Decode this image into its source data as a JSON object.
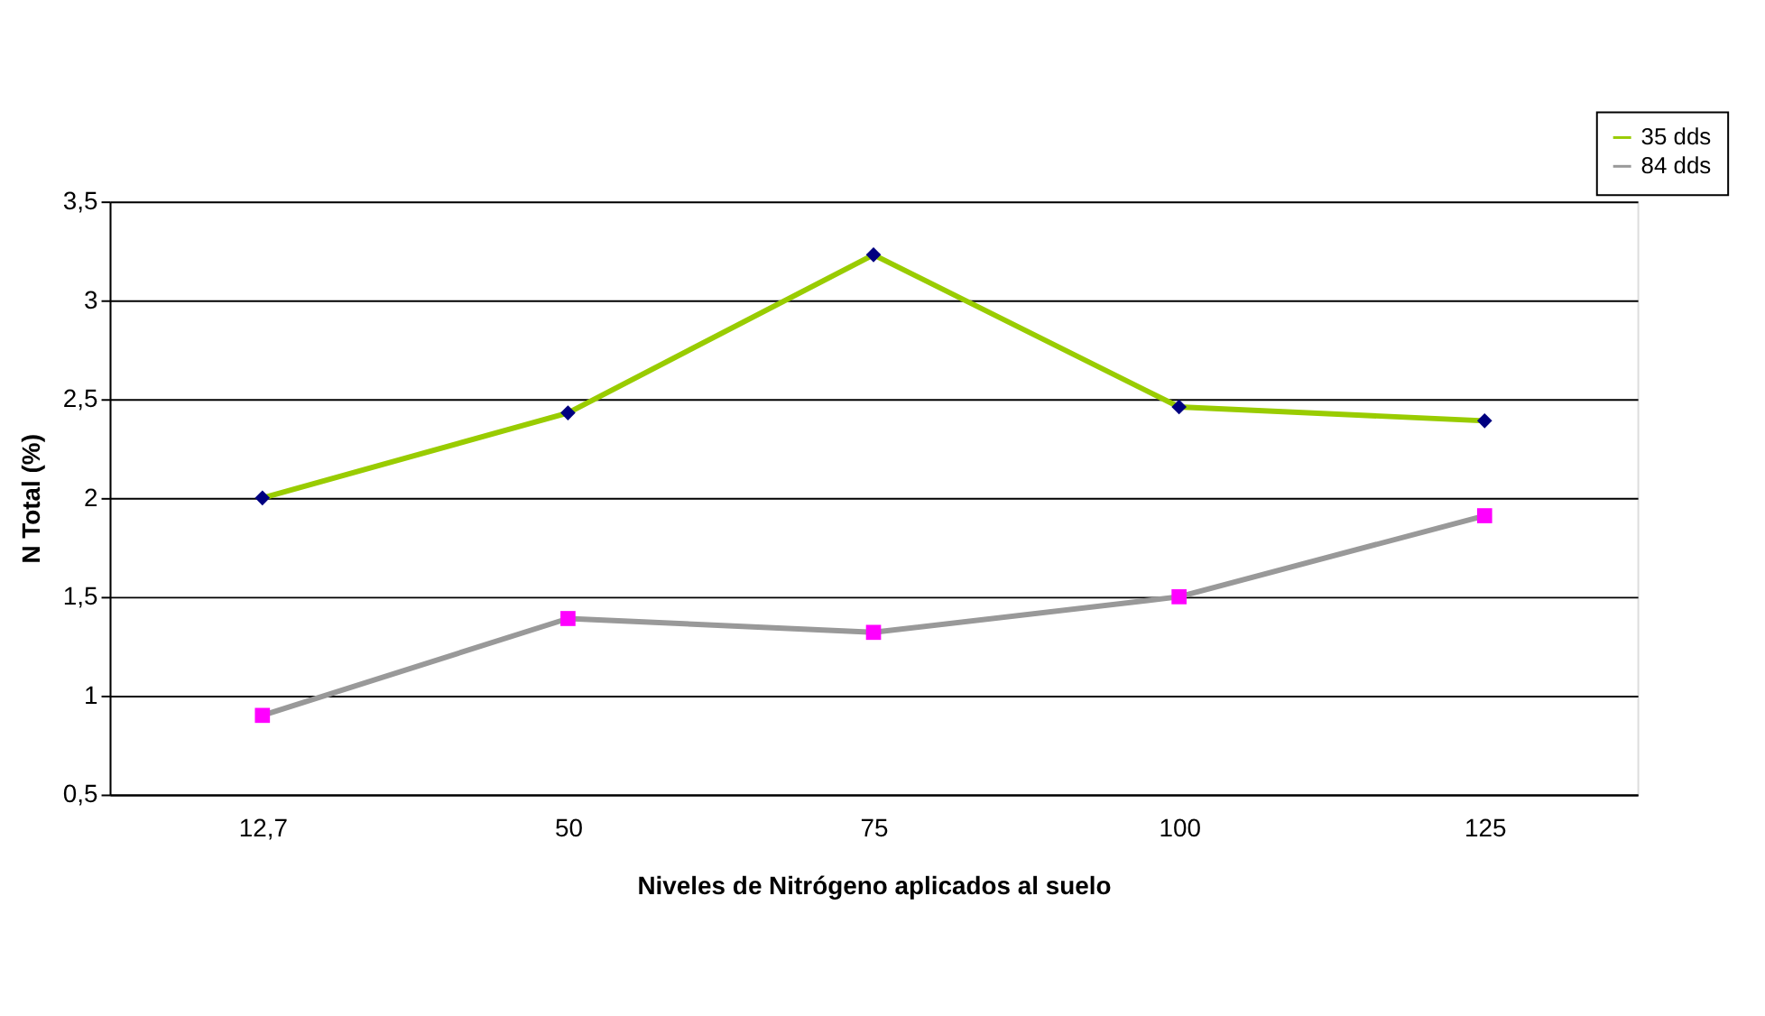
{
  "chart_data": {
    "type": "line",
    "xlabel": "Niveles de Nitrógeno aplicados al suelo",
    "ylabel": "N Total (%)",
    "categories": [
      "12,7",
      "50",
      "75",
      "100",
      "125"
    ],
    "series": [
      {
        "name": "35 dds",
        "color": "#99cc00",
        "colors": [
          "#000080",
          "#000080",
          "#000080",
          "#000080",
          "#000080"
        ],
        "marker": "diamond",
        "values": [
          2.0,
          2.43,
          3.23,
          2.46,
          2.39
        ]
      },
      {
        "name": "84 dds",
        "color": "#999999",
        "colors": [
          "#ff00ff",
          "#ff00ff",
          "#ff00ff",
          "#ff00ff",
          "#ff00ff"
        ],
        "marker": "square",
        "values": [
          0.9,
          1.39,
          1.32,
          1.5,
          1.91
        ]
      }
    ],
    "ylim": [
      0.5,
      3.5
    ],
    "yticks": [
      {
        "value": 0.5,
        "label": "0,5"
      },
      1,
      {
        "value": 1.5,
        "label": "1,5"
      },
      2,
      {
        "value": 2.5,
        "label": "2,5"
      },
      3,
      {
        "value": 3.5,
        "label": "3,5"
      }
    ],
    "grid": "y",
    "legend": "top right",
    "line_style": "solid"
  }
}
